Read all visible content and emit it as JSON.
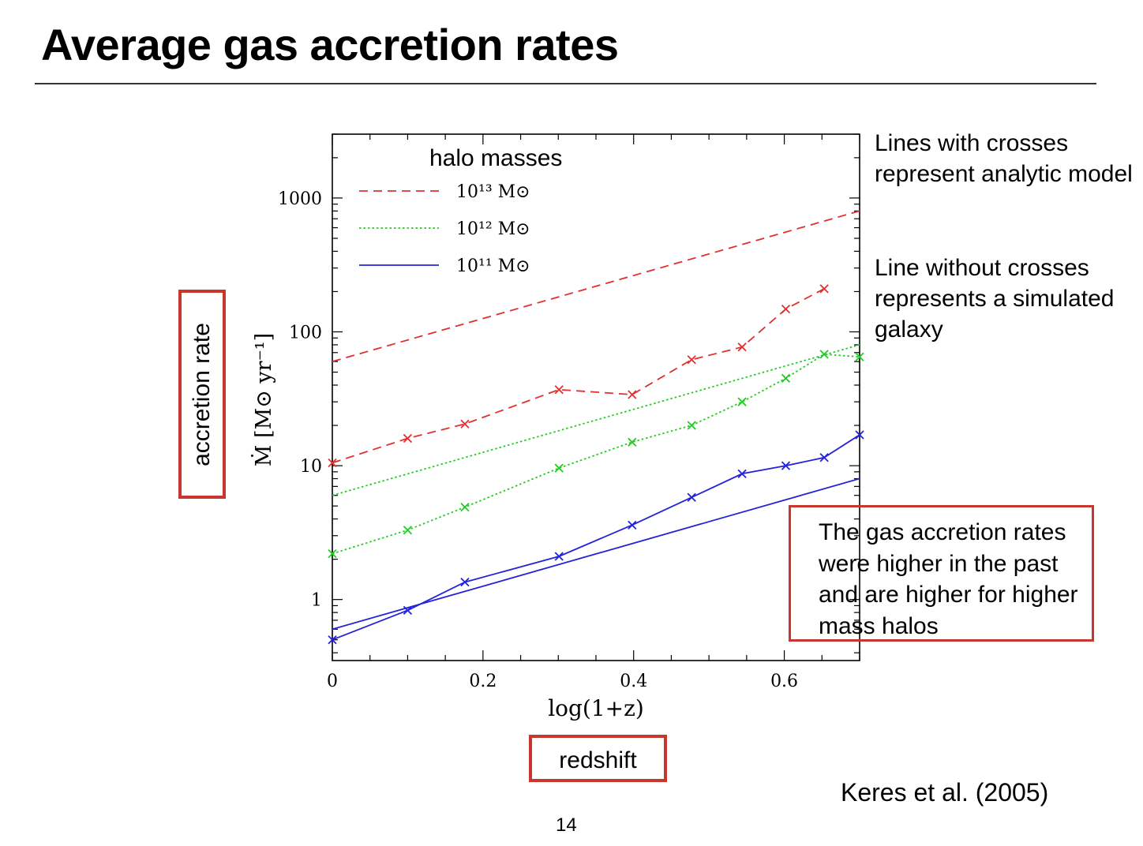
{
  "slide": {
    "title": "Average gas accretion rates",
    "notes": [
      "Lines with crosses represent analytic model",
      "Line without crosses represents a simulated galaxy"
    ],
    "callout": "The gas accretion rates were higher in the past and are higher for higher mass halos",
    "y_annotation": "accretion rate",
    "x_annotation": "redshift",
    "citation": "Keres et al. (2005)",
    "page_number": "14",
    "accent_color": "#c8372d"
  },
  "chart_data": {
    "type": "line",
    "xlabel": "log(1+z)",
    "ylabel": "Ṁ [M⊙ yr⁻¹]",
    "x_scale": "linear",
    "y_scale": "log",
    "xlim": [
      0,
      0.7
    ],
    "ylim": [
      0.35,
      3000
    ],
    "x_ticks": [
      "0",
      "0.2",
      "0.4",
      "0.6"
    ],
    "y_ticks": [
      "1",
      "10",
      "100",
      "1000"
    ],
    "legend": {
      "title": "halo masses",
      "placement": "top-left",
      "entries": [
        {
          "label": "10¹³ M⊙",
          "color": "#e03030",
          "style": "dashed"
        },
        {
          "label": "10¹² M⊙",
          "color": "#22cc22",
          "style": "dotted"
        },
        {
          "label": "10¹¹ M⊙",
          "color": "#2222dd",
          "style": "solid"
        }
      ]
    },
    "series": [
      {
        "mass": "1e13",
        "color": "#e03030",
        "style": "dashed",
        "markers": true,
        "x": [
          0,
          0.1,
          0.176,
          0.301,
          0.398,
          0.477,
          0.544,
          0.602,
          0.653
        ],
        "y": [
          10.5,
          16,
          20.5,
          37,
          34,
          62,
          77,
          148,
          210
        ]
      },
      {
        "mass": "1e13",
        "color": "#e03030",
        "style": "dashed",
        "markers": false,
        "x": [
          0,
          0.7
        ],
        "y": [
          60,
          800
        ]
      },
      {
        "mass": "1e12",
        "color": "#22cc22",
        "style": "dotted",
        "markers": true,
        "x": [
          0,
          0.1,
          0.176,
          0.301,
          0.398,
          0.477,
          0.544,
          0.602,
          0.653,
          0.7
        ],
        "y": [
          2.2,
          3.3,
          4.9,
          9.6,
          15,
          20,
          30,
          45,
          68,
          65
        ]
      },
      {
        "mass": "1e12",
        "color": "#22cc22",
        "style": "dotted",
        "markers": false,
        "x": [
          0,
          0.7
        ],
        "y": [
          6,
          80
        ]
      },
      {
        "mass": "1e11",
        "color": "#2222dd",
        "style": "solid",
        "markers": true,
        "x": [
          0,
          0.1,
          0.176,
          0.301,
          0.398,
          0.477,
          0.544,
          0.602,
          0.653,
          0.7
        ],
        "y": [
          0.5,
          0.83,
          1.35,
          2.1,
          3.6,
          5.8,
          8.7,
          10,
          11.5,
          17
        ]
      },
      {
        "mass": "1e11",
        "color": "#2222dd",
        "style": "solid",
        "markers": false,
        "x": [
          0,
          0.7
        ],
        "y": [
          0.6,
          8
        ]
      }
    ]
  }
}
